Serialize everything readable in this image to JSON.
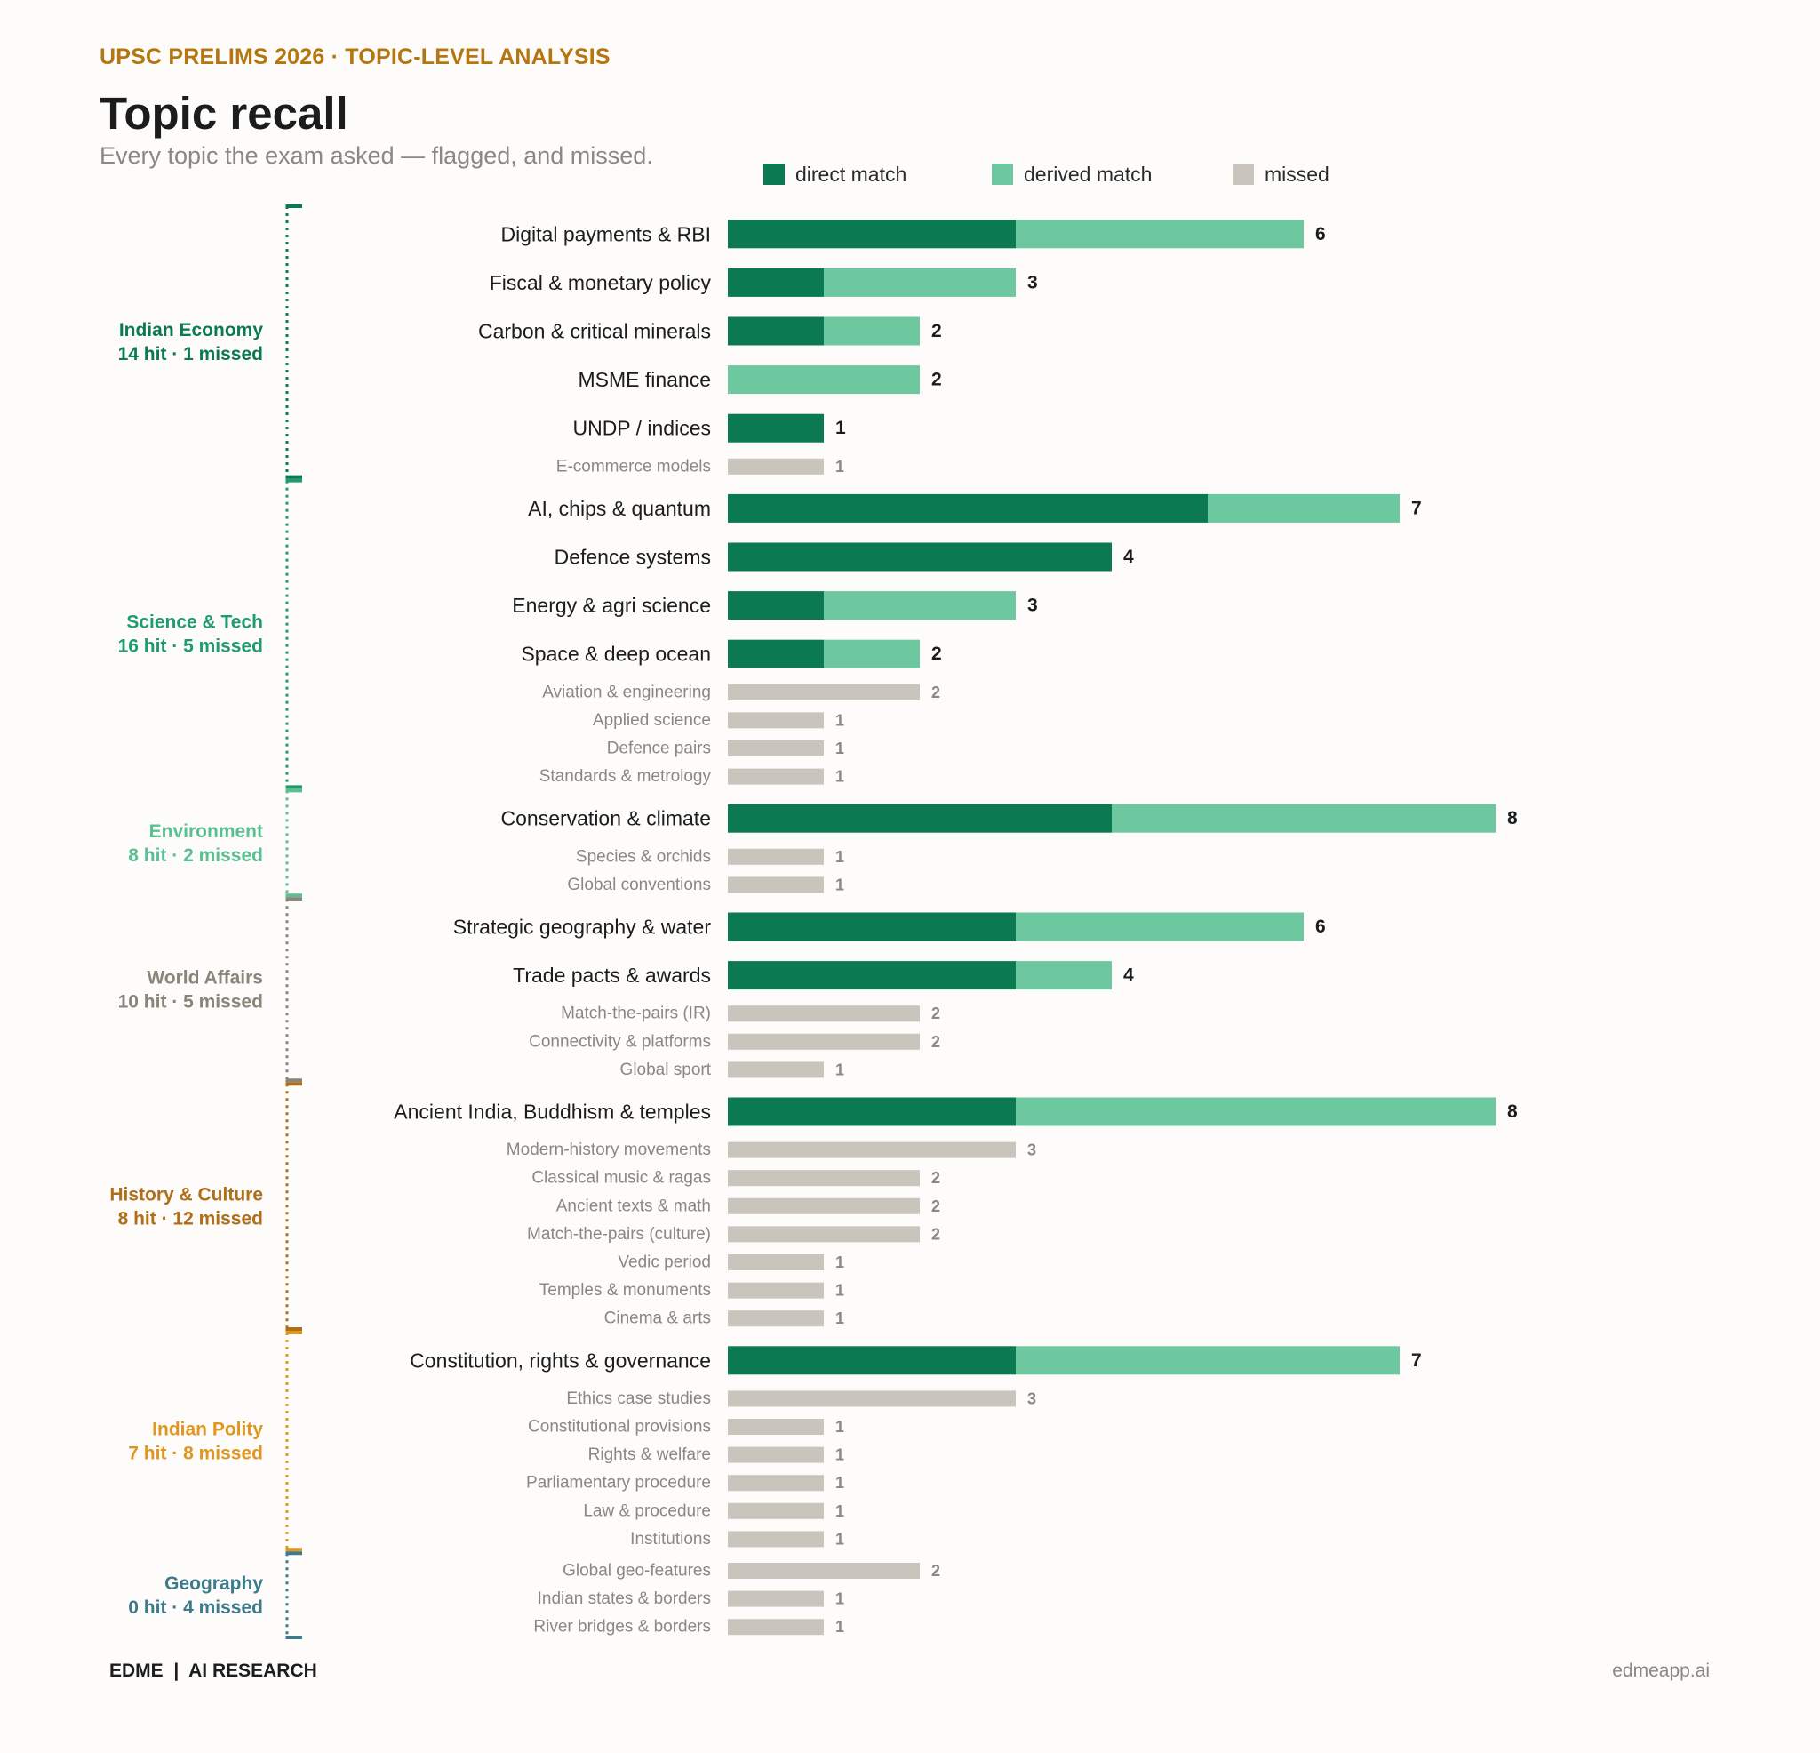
{
  "header": {
    "kicker": "UPSC PRELIMS 2026 · TOPIC-LEVEL ANALYSIS",
    "title": "Topic recall",
    "subtitle": "Every topic the exam asked — flagged, and missed."
  },
  "legend": [
    {
      "label": "direct match",
      "color": "#0b7a50"
    },
    {
      "label": "derived match",
      "color": "#6dc8a0"
    },
    {
      "label": "missed",
      "color": "#c9c4bc"
    }
  ],
  "footer": {
    "brand": "EDME  |  AI RESEARCH",
    "url": "edmeapp.ai"
  },
  "chart_data": {
    "type": "bar",
    "orientation": "horizontal",
    "stacked": true,
    "xlim": [
      0,
      8
    ],
    "grid": false,
    "legend_position": "top",
    "series_colors": {
      "direct": "#0b7a50",
      "derived": "#6dc8a0",
      "missed": "#c9c4bc"
    },
    "groups": [
      {
        "name": "Indian Economy",
        "summary": "14 hit · 1 missed",
        "color": "#0b7a50",
        "topics": [
          {
            "label": "Digital payments & RBI",
            "direct": 3,
            "derived": 3,
            "total": 6
          },
          {
            "label": "Fiscal & monetary policy",
            "direct": 1,
            "derived": 2,
            "total": 3
          },
          {
            "label": "Carbon & critical minerals",
            "direct": 1,
            "derived": 1,
            "total": 2
          },
          {
            "label": "MSME finance",
            "direct": 0,
            "derived": 2,
            "total": 2
          },
          {
            "label": "UNDP / indices",
            "direct": 1,
            "derived": 0,
            "total": 1
          },
          {
            "label": "E-commerce models",
            "missed": 1,
            "total": 1
          }
        ]
      },
      {
        "name": "Science & Tech",
        "summary": "16 hit · 5 missed",
        "color": "#1e9c6c",
        "topics": [
          {
            "label": "AI, chips & quantum",
            "direct": 5,
            "derived": 2,
            "total": 7
          },
          {
            "label": "Defence systems",
            "direct": 4,
            "derived": 0,
            "total": 4
          },
          {
            "label": "Energy & agri science",
            "direct": 1,
            "derived": 2,
            "total": 3
          },
          {
            "label": "Space & deep ocean",
            "direct": 1,
            "derived": 1,
            "total": 2
          },
          {
            "label": "Aviation & engineering",
            "missed": 2,
            "total": 2
          },
          {
            "label": "Applied science",
            "missed": 1,
            "total": 1
          },
          {
            "label": "Defence pairs",
            "missed": 1,
            "total": 1
          },
          {
            "label": "Standards & metrology",
            "missed": 1,
            "total": 1
          }
        ]
      },
      {
        "name": "Environment",
        "summary": "8 hit · 2 missed",
        "color": "#5cbf92",
        "topics": [
          {
            "label": "Conservation & climate",
            "direct": 4,
            "derived": 4,
            "total": 8
          },
          {
            "label": "Species & orchids",
            "missed": 1,
            "total": 1
          },
          {
            "label": "Global conventions",
            "missed": 1,
            "total": 1
          }
        ]
      },
      {
        "name": "World Affairs",
        "summary": "10 hit · 5 missed",
        "color": "#8a847b",
        "topics": [
          {
            "label": "Strategic geography & water",
            "direct": 3,
            "derived": 3,
            "total": 6
          },
          {
            "label": "Trade pacts & awards",
            "direct": 3,
            "derived": 1,
            "total": 4
          },
          {
            "label": "Match-the-pairs (IR)",
            "missed": 2,
            "total": 2
          },
          {
            "label": "Connectivity & platforms",
            "missed": 2,
            "total": 2
          },
          {
            "label": "Global sport",
            "missed": 1,
            "total": 1
          }
        ]
      },
      {
        "name": "History & Culture",
        "summary": "8 hit · 12 missed",
        "color": "#b06e18",
        "topics": [
          {
            "label": "Ancient India, Buddhism & temples",
            "direct": 3,
            "derived": 5,
            "total": 8
          },
          {
            "label": "Modern-history movements",
            "missed": 3,
            "total": 3
          },
          {
            "label": "Classical music & ragas",
            "missed": 2,
            "total": 2
          },
          {
            "label": "Ancient texts & math",
            "missed": 2,
            "total": 2
          },
          {
            "label": "Match-the-pairs (culture)",
            "missed": 2,
            "total": 2
          },
          {
            "label": "Vedic period",
            "missed": 1,
            "total": 1
          },
          {
            "label": "Temples & monuments",
            "missed": 1,
            "total": 1
          },
          {
            "label": "Cinema & arts",
            "missed": 1,
            "total": 1
          }
        ]
      },
      {
        "name": "Indian Polity",
        "summary": "7 hit · 8 missed",
        "color": "#e0961f",
        "topics": [
          {
            "label": "Constitution, rights & governance",
            "direct": 3,
            "derived": 4,
            "total": 7
          },
          {
            "label": "Ethics case studies",
            "missed": 3,
            "total": 3
          },
          {
            "label": "Constitutional provisions",
            "missed": 1,
            "total": 1
          },
          {
            "label": "Rights & welfare",
            "missed": 1,
            "total": 1
          },
          {
            "label": "Parliamentary procedure",
            "missed": 1,
            "total": 1
          },
          {
            "label": "Law & procedure",
            "missed": 1,
            "total": 1
          },
          {
            "label": "Institutions",
            "missed": 1,
            "total": 1
          }
        ]
      },
      {
        "name": "Geography",
        "summary": "0 hit · 4 missed",
        "color": "#3d7a8c",
        "topics": [
          {
            "label": "Global geo-features",
            "missed": 2,
            "total": 2
          },
          {
            "label": "Indian states & borders",
            "missed": 1,
            "total": 1
          },
          {
            "label": "River bridges & borders",
            "missed": 1,
            "total": 1
          }
        ]
      }
    ]
  }
}
